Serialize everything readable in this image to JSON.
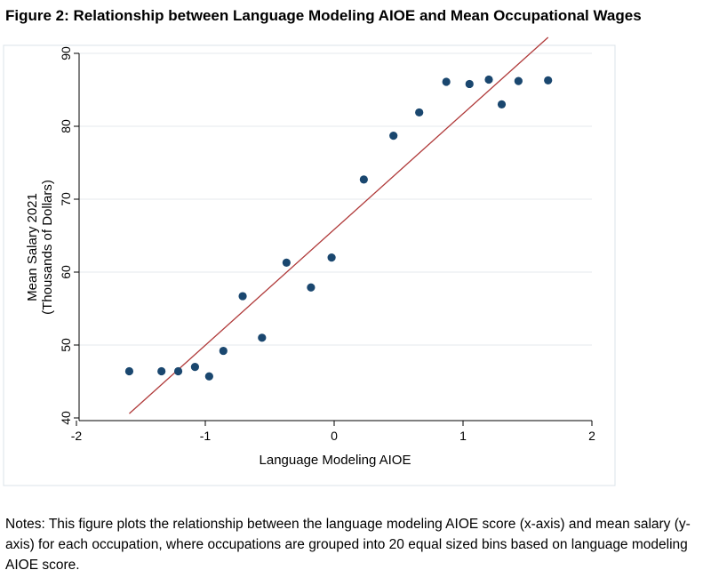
{
  "figure": {
    "title": "Figure 2: Relationship between Language Modeling AIOE and Mean Occupational Wages",
    "notes": "Notes: This figure plots the relationship between the language modeling AIOE score (x-axis) and mean salary (y-axis) for each occupation, where occupations are grouped into 20 equal sized bins based on language modeling AIOE score."
  },
  "chart_data": {
    "type": "scatter",
    "xlabel": "Language Modeling AIOE",
    "ylabel_line1": "Mean Salary 2021",
    "ylabel_line2": "(Thousands of Dollars)",
    "xlim": [
      -2,
      2
    ],
    "ylim": [
      40,
      90
    ],
    "x_ticks": [
      -2,
      -1,
      0,
      1,
      2
    ],
    "y_ticks": [
      40,
      50,
      60,
      70,
      80,
      90
    ],
    "x_tick_labels": [
      "-2",
      "-1",
      "0",
      "1",
      "2"
    ],
    "y_tick_labels": [
      "40",
      "50",
      "60",
      "70",
      "80",
      "90"
    ],
    "grid": "horizontal",
    "points": [
      {
        "x": -1.59,
        "y": 46.4
      },
      {
        "x": -1.34,
        "y": 46.4
      },
      {
        "x": -1.21,
        "y": 46.4
      },
      {
        "x": -1.08,
        "y": 47.0
      },
      {
        "x": -0.97,
        "y": 45.7
      },
      {
        "x": -0.86,
        "y": 49.2
      },
      {
        "x": -0.71,
        "y": 56.7
      },
      {
        "x": -0.56,
        "y": 51.0
      },
      {
        "x": -0.37,
        "y": 61.3
      },
      {
        "x": -0.18,
        "y": 57.9
      },
      {
        "x": -0.02,
        "y": 62.0
      },
      {
        "x": 0.23,
        "y": 72.7
      },
      {
        "x": 0.46,
        "y": 78.7
      },
      {
        "x": 0.66,
        "y": 81.9
      },
      {
        "x": 0.87,
        "y": 86.1
      },
      {
        "x": 1.05,
        "y": 85.8
      },
      {
        "x": 1.2,
        "y": 86.4
      },
      {
        "x": 1.3,
        "y": 83.0
      },
      {
        "x": 1.43,
        "y": 86.2
      },
      {
        "x": 1.66,
        "y": 86.3
      }
    ],
    "fit_line": {
      "x": [
        -1.59,
        1.66
      ],
      "y": [
        40.6,
        92.2
      ]
    },
    "colors": {
      "marker": "#1a476f",
      "fit_line": "#b03a3a",
      "grid": "#e4e9ee",
      "frame": "#dbe3e9",
      "axis": "#000000"
    }
  }
}
